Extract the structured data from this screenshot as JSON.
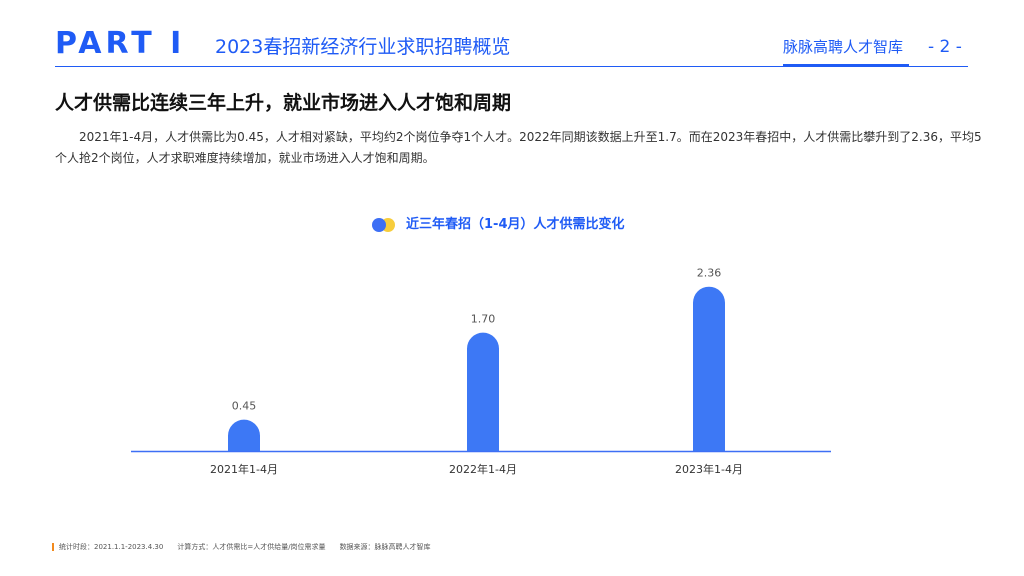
{
  "header": {
    "part_label": "PART Ⅰ",
    "title": "2023春招新经济行业求职招聘概览",
    "brand": "脉脉高聘人才智库",
    "page_number": "- 2 -"
  },
  "section": {
    "title": "人才供需比连续三年上升，就业市场进入人才饱和周期",
    "paragraph": "2021年1-4月，人才供需比为0.45，人才相对紧缺，平均约2个岗位争夺1个人才。2022年同期该数据上升至1.7。而在2023年春招中，人才供需比攀升到了2.36，平均5个人抢2个岗位，人才求职难度持续增加，就业市场进入人才饱和周期。"
  },
  "legend": {
    "label": "近三年春招（1-4月）人才供需比变化"
  },
  "colors": {
    "accent": "#1f5bf5",
    "bar": "#3d78f5",
    "legend_yellow": "#f7cd3c"
  },
  "chart_data": {
    "type": "bar",
    "title": "近三年春招（1-4月）人才供需比变化",
    "categories": [
      "2021年1-4月",
      "2022年1-4月",
      "2023年1-4月"
    ],
    "values": [
      0.45,
      1.7,
      2.36
    ],
    "value_labels": [
      "0.45",
      "1.70",
      "2.36"
    ],
    "ylim": [
      0,
      2.6
    ],
    "grid": false,
    "legend_position": "top-center"
  },
  "footer": {
    "period": "统计时段：2021.1.1-2023.4.30",
    "method": "计算方式：人才供需比=人才供给量/岗位需求量",
    "source": "数据来源：脉脉高聘人才智库"
  }
}
